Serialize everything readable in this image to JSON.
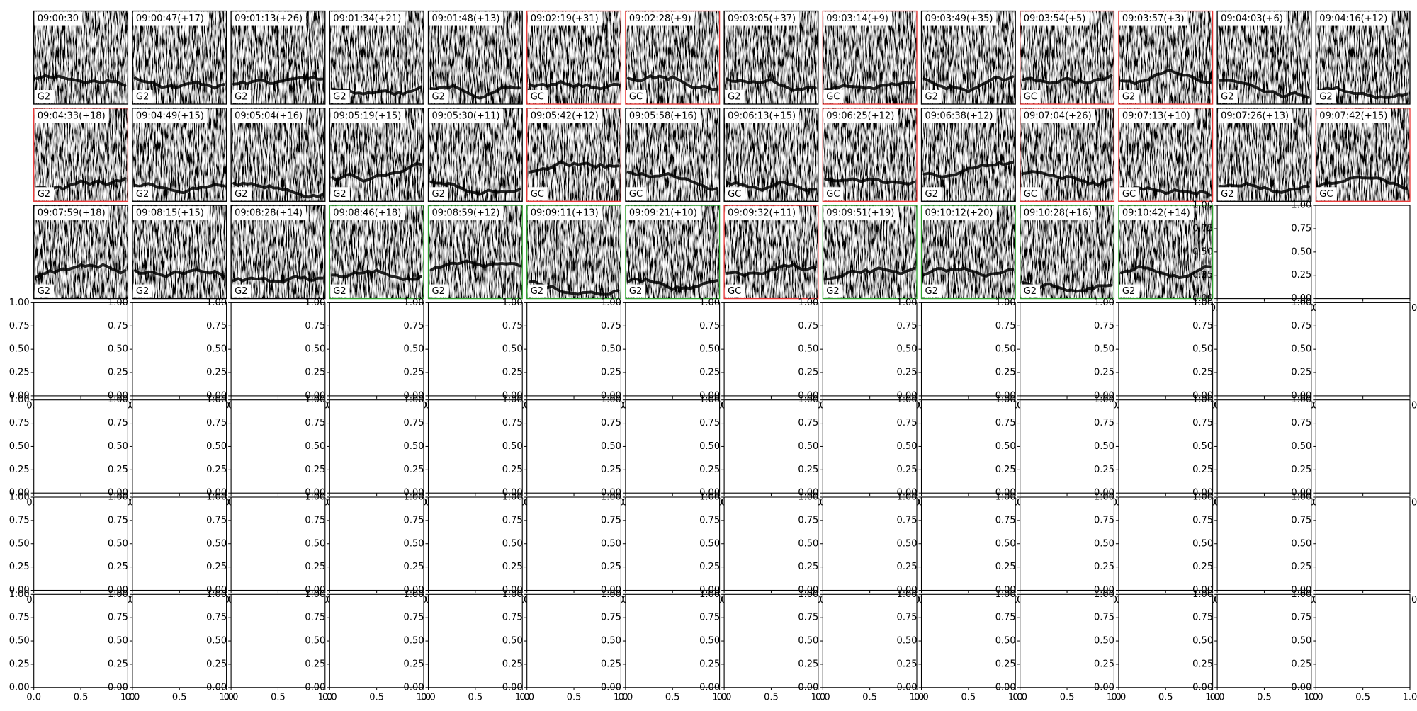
{
  "panels": [
    {
      "title": "09:00:30",
      "label": "G2",
      "border": "#000000"
    },
    {
      "title": "09:00:47(+17)",
      "label": "G2",
      "border": "#000000"
    },
    {
      "title": "09:01:13(+26)",
      "label": "G2",
      "border": "#000000"
    },
    {
      "title": "09:01:34(+21)",
      "label": "G2",
      "border": "#000000"
    },
    {
      "title": "09:01:48(+13)",
      "label": "G2",
      "border": "#000000"
    },
    {
      "title": "09:02:19(+31)",
      "label": "GC",
      "border": "#e8312f"
    },
    {
      "title": "09:02:28(+9)",
      "label": "GC",
      "border": "#e8312f"
    },
    {
      "title": "09:03:05(+37)",
      "label": "G2",
      "border": "#000000"
    },
    {
      "title": "09:03:14(+9)",
      "label": "GC",
      "border": "#e8312f"
    },
    {
      "title": "09:03:49(+35)",
      "label": "G2",
      "border": "#000000"
    },
    {
      "title": "09:03:54(+5)",
      "label": "GC",
      "border": "#e8312f"
    },
    {
      "title": "09:03:57(+3)",
      "label": "G2",
      "border": "#e8312f"
    },
    {
      "title": "09:04:03(+6)",
      "label": "G2",
      "border": "#000000"
    },
    {
      "title": "09:04:16(+12)",
      "label": "G2",
      "border": "#000000"
    },
    {
      "title": "09:04:33(+18)",
      "label": "G2",
      "border": "#e8312f"
    },
    {
      "title": "09:04:49(+15)",
      "label": "G2",
      "border": "#000000"
    },
    {
      "title": "09:05:04(+16)",
      "label": "G2",
      "border": "#000000"
    },
    {
      "title": "09:05:19(+15)",
      "label": "G2",
      "border": "#000000"
    },
    {
      "title": "09:05:30(+11)",
      "label": "G2",
      "border": "#000000"
    },
    {
      "title": "09:05:42(+12)",
      "label": "GC",
      "border": "#e8312f"
    },
    {
      "title": "09:05:58(+16)",
      "label": "GC",
      "border": "#000000"
    },
    {
      "title": "09:06:13(+15)",
      "label": "GC",
      "border": "#000000"
    },
    {
      "title": "09:06:25(+12)",
      "label": "GC",
      "border": "#e8312f"
    },
    {
      "title": "09:06:38(+12)",
      "label": "G2",
      "border": "#000000"
    },
    {
      "title": "09:07:04(+26)",
      "label": "GC",
      "border": "#e8312f"
    },
    {
      "title": "09:07:13(+10)",
      "label": "GC",
      "border": "#e8312f"
    },
    {
      "title": "09:07:26(+13)",
      "label": "G2",
      "border": "#000000"
    },
    {
      "title": "09:07:42(+15)",
      "label": "GC",
      "border": "#e8312f"
    },
    {
      "title": "09:07:59(+18)",
      "label": "G2",
      "border": "#000000"
    },
    {
      "title": "09:08:15(+15)",
      "label": "G2",
      "border": "#000000"
    },
    {
      "title": "09:08:28(+14)",
      "label": "G2",
      "border": "#000000"
    },
    {
      "title": "09:08:46(+18)",
      "label": "G2",
      "border": "#2ca02c"
    },
    {
      "title": "09:08:59(+12)",
      "label": "G2",
      "border": "#2ca02c"
    },
    {
      "title": "09:09:11(+13)",
      "label": "G2",
      "border": "#2ca02c"
    },
    {
      "title": "09:09:21(+10)",
      "label": "G2",
      "border": "#2ca02c"
    },
    {
      "title": "09:09:32(+11)",
      "label": "GC",
      "border": "#e8312f"
    },
    {
      "title": "09:09:51(+19)",
      "label": "G2",
      "border": "#2ca02c"
    },
    {
      "title": "09:10:12(+20)",
      "label": "G2",
      "border": "#2ca02c"
    },
    {
      "title": "09:10:28(+16)",
      "label": "G2",
      "border": "#2ca02c"
    },
    {
      "title": "09:10:42(+14)",
      "label": "G2",
      "border": "#2ca02c"
    }
  ],
  "empty_axes": {
    "xlim": [
      0,
      1
    ],
    "ylim": [
      0,
      1
    ],
    "xticks": [
      {
        "value": 0,
        "label": "0.0"
      },
      0.5,
      {
        "value": 1,
        "label": "1.0"
      }
    ],
    "yticks": [
      {
        "value": 0,
        "label": "0.00"
      },
      0.25,
      {
        "value": 0.5,
        "label": "0.50"
      },
      0.75,
      {
        "value": 1,
        "label": "1.00"
      }
    ]
  }
}
